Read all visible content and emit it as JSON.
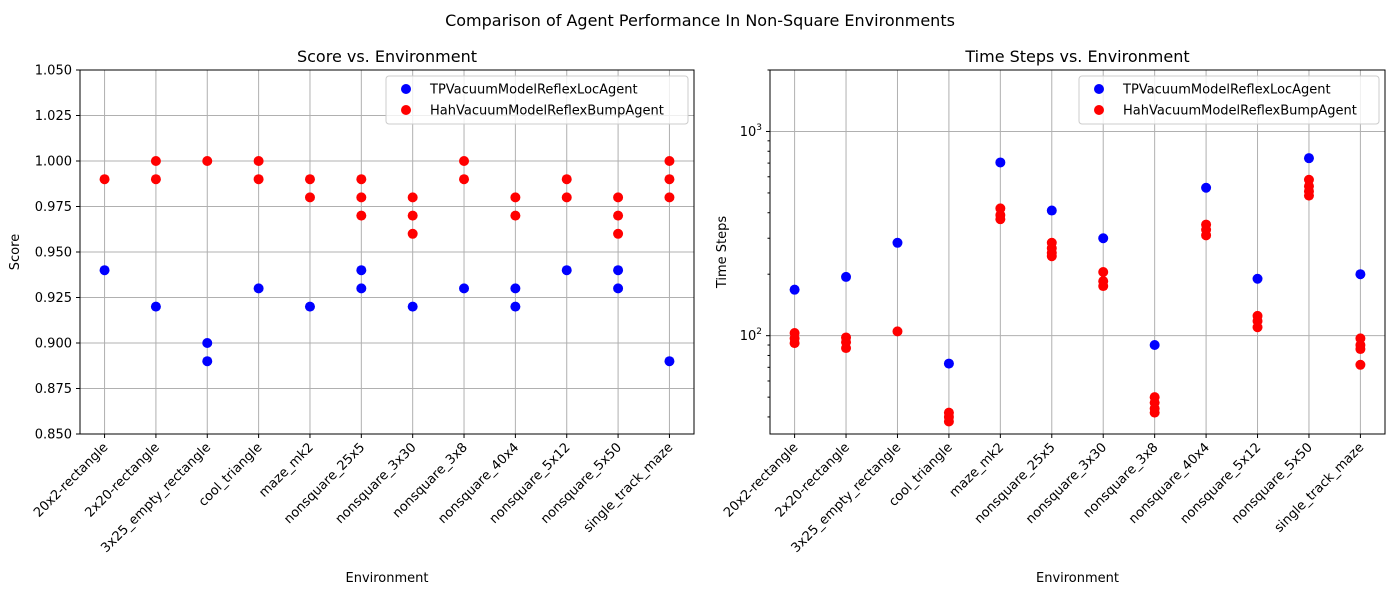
{
  "figure": {
    "suptitle": "Comparison of Agent Performance In Non-Square Environments"
  },
  "colors": {
    "TPVacuumModelReflexLocAgent": "#0000ff",
    "HahVacuumModelReflexBumpAgent": "#ff0000"
  },
  "chart_data": [
    {
      "type": "scatter",
      "title": "Score vs. Environment",
      "xlabel": "Environment",
      "ylabel": "Score",
      "ylim": [
        0.85,
        1.05
      ],
      "yscale": "linear",
      "yticks": [
        0.85,
        0.875,
        0.9,
        0.925,
        0.95,
        0.975,
        1.0,
        1.025,
        1.05
      ],
      "ytick_labels": [
        "0.850",
        "0.875",
        "0.900",
        "0.925",
        "0.950",
        "0.975",
        "1.000",
        "1.025",
        "1.050"
      ],
      "grid": true,
      "legend": "upper right",
      "categories": [
        "20x2-rectangle",
        "2x20-rectangle",
        "3x25_empty_rectangle",
        "cool_triangle",
        "maze_mk2",
        "nonsquare_25x5",
        "nonsquare_3x30",
        "nonsquare_3x8",
        "nonsquare_40x4",
        "nonsquare_5x12",
        "nonsquare_5x50",
        "single_track_maze"
      ],
      "series": [
        {
          "name": "TPVacuumModelReflexLocAgent",
          "color": "#0000ff",
          "points": [
            [
              "20x2-rectangle",
              0.94
            ],
            [
              "2x20-rectangle",
              0.92
            ],
            [
              "3x25_empty_rectangle",
              0.9
            ],
            [
              "3x25_empty_rectangle",
              0.89
            ],
            [
              "cool_triangle",
              0.93
            ],
            [
              "maze_mk2",
              0.92
            ],
            [
              "nonsquare_25x5",
              0.94
            ],
            [
              "nonsquare_25x5",
              0.93
            ],
            [
              "nonsquare_3x30",
              0.92
            ],
            [
              "nonsquare_3x8",
              0.93
            ],
            [
              "nonsquare_40x4",
              0.93
            ],
            [
              "nonsquare_40x4",
              0.92
            ],
            [
              "nonsquare_5x12",
              0.94
            ],
            [
              "nonsquare_5x50",
              0.94
            ],
            [
              "nonsquare_5x50",
              0.93
            ],
            [
              "single_track_maze",
              0.89
            ]
          ]
        },
        {
          "name": "HahVacuumModelReflexBumpAgent",
          "color": "#ff0000",
          "points": [
            [
              "20x2-rectangle",
              0.99
            ],
            [
              "2x20-rectangle",
              1.0
            ],
            [
              "2x20-rectangle",
              0.99
            ],
            [
              "3x25_empty_rectangle",
              1.0
            ],
            [
              "cool_triangle",
              1.0
            ],
            [
              "cool_triangle",
              0.99
            ],
            [
              "maze_mk2",
              0.99
            ],
            [
              "maze_mk2",
              0.98
            ],
            [
              "nonsquare_25x5",
              0.99
            ],
            [
              "nonsquare_25x5",
              0.98
            ],
            [
              "nonsquare_25x5",
              0.97
            ],
            [
              "nonsquare_3x30",
              0.98
            ],
            [
              "nonsquare_3x30",
              0.97
            ],
            [
              "nonsquare_3x30",
              0.96
            ],
            [
              "nonsquare_3x8",
              1.0
            ],
            [
              "nonsquare_3x8",
              0.99
            ],
            [
              "nonsquare_40x4",
              0.98
            ],
            [
              "nonsquare_40x4",
              0.97
            ],
            [
              "nonsquare_5x12",
              0.99
            ],
            [
              "nonsquare_5x12",
              0.98
            ],
            [
              "nonsquare_5x50",
              0.98
            ],
            [
              "nonsquare_5x50",
              0.97
            ],
            [
              "nonsquare_5x50",
              0.96
            ],
            [
              "single_track_maze",
              1.0
            ],
            [
              "single_track_maze",
              0.99
            ],
            [
              "single_track_maze",
              0.98
            ]
          ]
        }
      ]
    },
    {
      "type": "scatter",
      "title": "Time Steps vs. Environment",
      "xlabel": "Environment",
      "ylabel": "Time Steps",
      "ylim": [
        33,
        2000
      ],
      "yscale": "log",
      "yticks": [
        100,
        1000
      ],
      "ytick_labels": [
        "10²",
        "10³"
      ],
      "grid": true,
      "legend": "upper right",
      "categories": [
        "20x2-rectangle",
        "2x20-rectangle",
        "3x25_empty_rectangle",
        "cool_triangle",
        "maze_mk2",
        "nonsquare_25x5",
        "nonsquare_3x30",
        "nonsquare_3x8",
        "nonsquare_40x4",
        "nonsquare_5x12",
        "nonsquare_5x50",
        "single_track_maze"
      ],
      "series": [
        {
          "name": "TPVacuumModelReflexLocAgent",
          "color": "#0000ff",
          "points": [
            [
              "20x2-rectangle",
              168
            ],
            [
              "2x20-rectangle",
              194
            ],
            [
              "3x25_empty_rectangle",
              285
            ],
            [
              "cool_triangle",
              73
            ],
            [
              "maze_mk2",
              705
            ],
            [
              "nonsquare_25x5",
              410
            ],
            [
              "nonsquare_3x30",
              300
            ],
            [
              "nonsquare_3x8",
              90
            ],
            [
              "nonsquare_40x4",
              530
            ],
            [
              "nonsquare_5x12",
              190
            ],
            [
              "nonsquare_5x50",
              740
            ],
            [
              "single_track_maze",
              200
            ]
          ]
        },
        {
          "name": "HahVacuumModelReflexBumpAgent",
          "color": "#ff0000",
          "points": [
            [
              "20x2-rectangle",
              103
            ],
            [
              "20x2-rectangle",
              97
            ],
            [
              "20x2-rectangle",
              92
            ],
            [
              "2x20-rectangle",
              98
            ],
            [
              "2x20-rectangle",
              93
            ],
            [
              "2x20-rectangle",
              87
            ],
            [
              "3x25_empty_rectangle",
              105
            ],
            [
              "cool_triangle",
              42
            ],
            [
              "cool_triangle",
              40
            ],
            [
              "cool_triangle",
              38
            ],
            [
              "maze_mk2",
              420
            ],
            [
              "maze_mk2",
              390
            ],
            [
              "maze_mk2",
              372
            ],
            [
              "nonsquare_25x5",
              285
            ],
            [
              "nonsquare_25x5",
              268
            ],
            [
              "nonsquare_25x5",
              255
            ],
            [
              "nonsquare_25x5",
              245
            ],
            [
              "nonsquare_3x30",
              205
            ],
            [
              "nonsquare_3x30",
              185
            ],
            [
              "nonsquare_3x30",
              175
            ],
            [
              "nonsquare_3x8",
              50
            ],
            [
              "nonsquare_3x8",
              47
            ],
            [
              "nonsquare_3x8",
              44
            ],
            [
              "nonsquare_3x8",
              42
            ],
            [
              "nonsquare_40x4",
              350
            ],
            [
              "nonsquare_40x4",
              330
            ],
            [
              "nonsquare_40x4",
              310
            ],
            [
              "nonsquare_5x12",
              125
            ],
            [
              "nonsquare_5x12",
              118
            ],
            [
              "nonsquare_5x12",
              110
            ],
            [
              "nonsquare_5x50",
              580
            ],
            [
              "nonsquare_5x50",
              540
            ],
            [
              "nonsquare_5x50",
              510
            ],
            [
              "nonsquare_5x50",
              485
            ],
            [
              "single_track_maze",
              97
            ],
            [
              "single_track_maze",
              90
            ],
            [
              "single_track_maze",
              86
            ],
            [
              "single_track_maze",
              72
            ]
          ]
        }
      ]
    }
  ]
}
